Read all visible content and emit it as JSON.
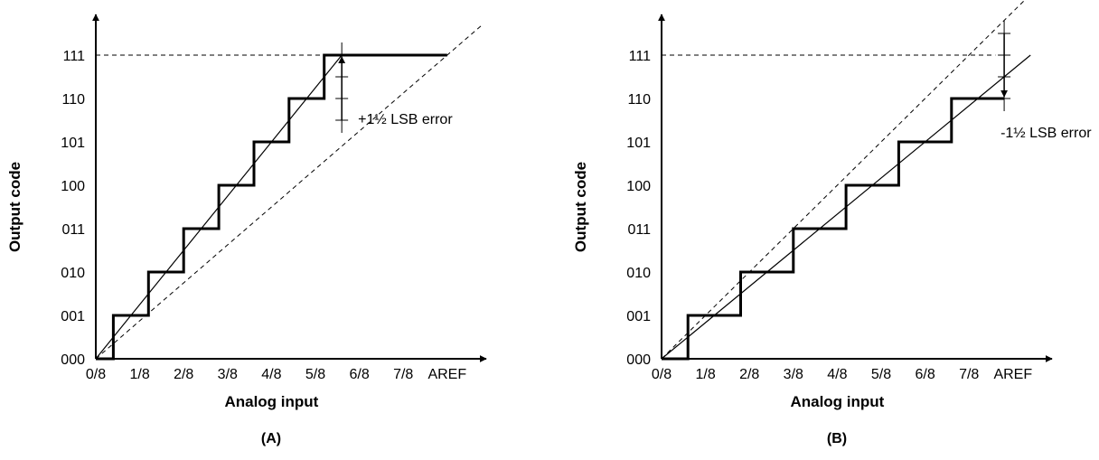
{
  "chart_data": [
    {
      "type": "line",
      "panel_label": "(A)",
      "xlabel": "Analog input",
      "ylabel": "Output code",
      "x_ticks": [
        "0/8",
        "1/8",
        "2/8",
        "3/8",
        "4/8",
        "5/8",
        "6/8",
        "7/8",
        "AREF"
      ],
      "y_ticks": [
        "000",
        "001",
        "010",
        "011",
        "100",
        "101",
        "110",
        "111"
      ],
      "xlim": [
        0,
        8
      ],
      "ylim": [
        0,
        7
      ],
      "grid": false,
      "series": [
        {
          "style": "thick-step",
          "points": [
            [
              0,
              0
            ],
            [
              0.4,
              0
            ],
            [
              0.4,
              1
            ],
            [
              1.2,
              1
            ],
            [
              1.2,
              2
            ],
            [
              2.0,
              2
            ],
            [
              2.0,
              3
            ],
            [
              2.8,
              3
            ],
            [
              2.8,
              4
            ],
            [
              3.6,
              4
            ],
            [
              3.6,
              5
            ],
            [
              4.4,
              5
            ],
            [
              4.4,
              6
            ],
            [
              5.2,
              6
            ],
            [
              5.2,
              7
            ],
            [
              8,
              7
            ]
          ]
        },
        {
          "style": "thin-solid",
          "points": [
            [
              0,
              0
            ],
            [
              5.6,
              7.0
            ]
          ]
        },
        {
          "style": "dashed",
          "points": [
            [
              0,
              0
            ],
            [
              8.8,
              7.7
            ]
          ]
        },
        {
          "style": "dashed",
          "points": [
            [
              0,
              7
            ],
            [
              5.2,
              7
            ]
          ]
        }
      ],
      "annotations": [
        {
          "text": "+1½ LSB error",
          "x": 5.6,
          "y_from": 5.5,
          "y_to": 7.0,
          "arrow": "up"
        }
      ]
    },
    {
      "type": "line",
      "panel_label": "(B)",
      "xlabel": "Analog input",
      "ylabel": "Output code",
      "x_ticks": [
        "0/8",
        "1/8",
        "2/8",
        "3/8",
        "4/8",
        "5/8",
        "6/8",
        "7/8",
        "AREF"
      ],
      "y_ticks": [
        "000",
        "001",
        "010",
        "011",
        "100",
        "101",
        "110",
        "111"
      ],
      "xlim": [
        0,
        8
      ],
      "ylim": [
        0,
        7
      ],
      "grid": false,
      "series": [
        {
          "style": "thick-step",
          "points": [
            [
              0,
              0
            ],
            [
              0.6,
              0
            ],
            [
              0.6,
              1
            ],
            [
              1.8,
              1
            ],
            [
              1.8,
              2
            ],
            [
              3.0,
              2
            ],
            [
              3.0,
              3
            ],
            [
              4.2,
              3
            ],
            [
              4.2,
              4
            ],
            [
              5.4,
              4
            ],
            [
              5.4,
              5
            ],
            [
              6.6,
              5
            ],
            [
              6.6,
              6
            ],
            [
              7.8,
              6
            ]
          ]
        },
        {
          "style": "thin-solid",
          "points": [
            [
              0,
              0
            ],
            [
              8.4,
              7.0
            ]
          ]
        },
        {
          "style": "dashed",
          "points": [
            [
              0,
              0
            ],
            [
              8.4,
              8.4
            ]
          ]
        },
        {
          "style": "dashed",
          "points": [
            [
              0,
              7
            ],
            [
              7.6,
              7
            ]
          ]
        }
      ],
      "annotations": [
        {
          "text": "-1½ LSB error",
          "x": 7.8,
          "y_from": 7.5,
          "y_to": 6.0,
          "arrow": "down"
        }
      ]
    }
  ]
}
